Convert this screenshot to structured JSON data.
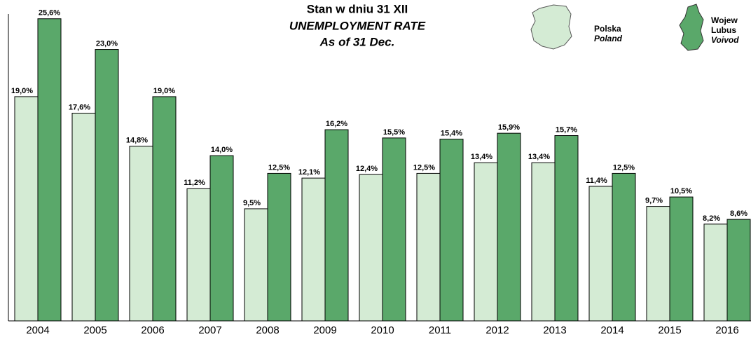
{
  "chart_data": {
    "type": "bar",
    "title": "Stan w dniu 31 XII",
    "subtitle": [
      "UNEMPLOYMENT RATE",
      "As of 31 Dec."
    ],
    "categories": [
      "2004",
      "2005",
      "2006",
      "2007",
      "2008",
      "2009",
      "2010",
      "2011",
      "2012",
      "2013",
      "2014",
      "2015",
      "2016"
    ],
    "series": [
      {
        "name": "Polska",
        "label_lines": [
          "Poland"
        ],
        "color": "#d4ebd4",
        "values": [
          19.0,
          17.6,
          14.8,
          11.2,
          9.5,
          12.1,
          12.4,
          12.5,
          13.4,
          13.4,
          11.4,
          9.7,
          8.2
        ],
        "value_labels": [
          "19,0%",
          "17,6%",
          "14,8%",
          "11,2%",
          "9,5%",
          "12,1%",
          "12,4%",
          "12,5%",
          "13,4%",
          "13,4%",
          "11,4%",
          "9,7%",
          "8,2%"
        ]
      },
      {
        "name": "Wojew",
        "label_lines": [
          "Lubus",
          "Voivod"
        ],
        "color": "#5aa86a",
        "values": [
          25.6,
          23.0,
          19.0,
          14.0,
          12.5,
          16.2,
          15.5,
          15.4,
          15.9,
          15.7,
          12.5,
          10.5,
          8.6
        ],
        "value_labels": [
          "25,6%",
          "23,0%",
          "19,0%",
          "14,0%",
          "12,5%",
          "16,2%",
          "15,5%",
          "15,4%",
          "15,9%",
          "15,7%",
          "12,5%",
          "10,5%",
          "8,6%"
        ]
      }
    ],
    "ylim": [
      0,
      26
    ]
  }
}
